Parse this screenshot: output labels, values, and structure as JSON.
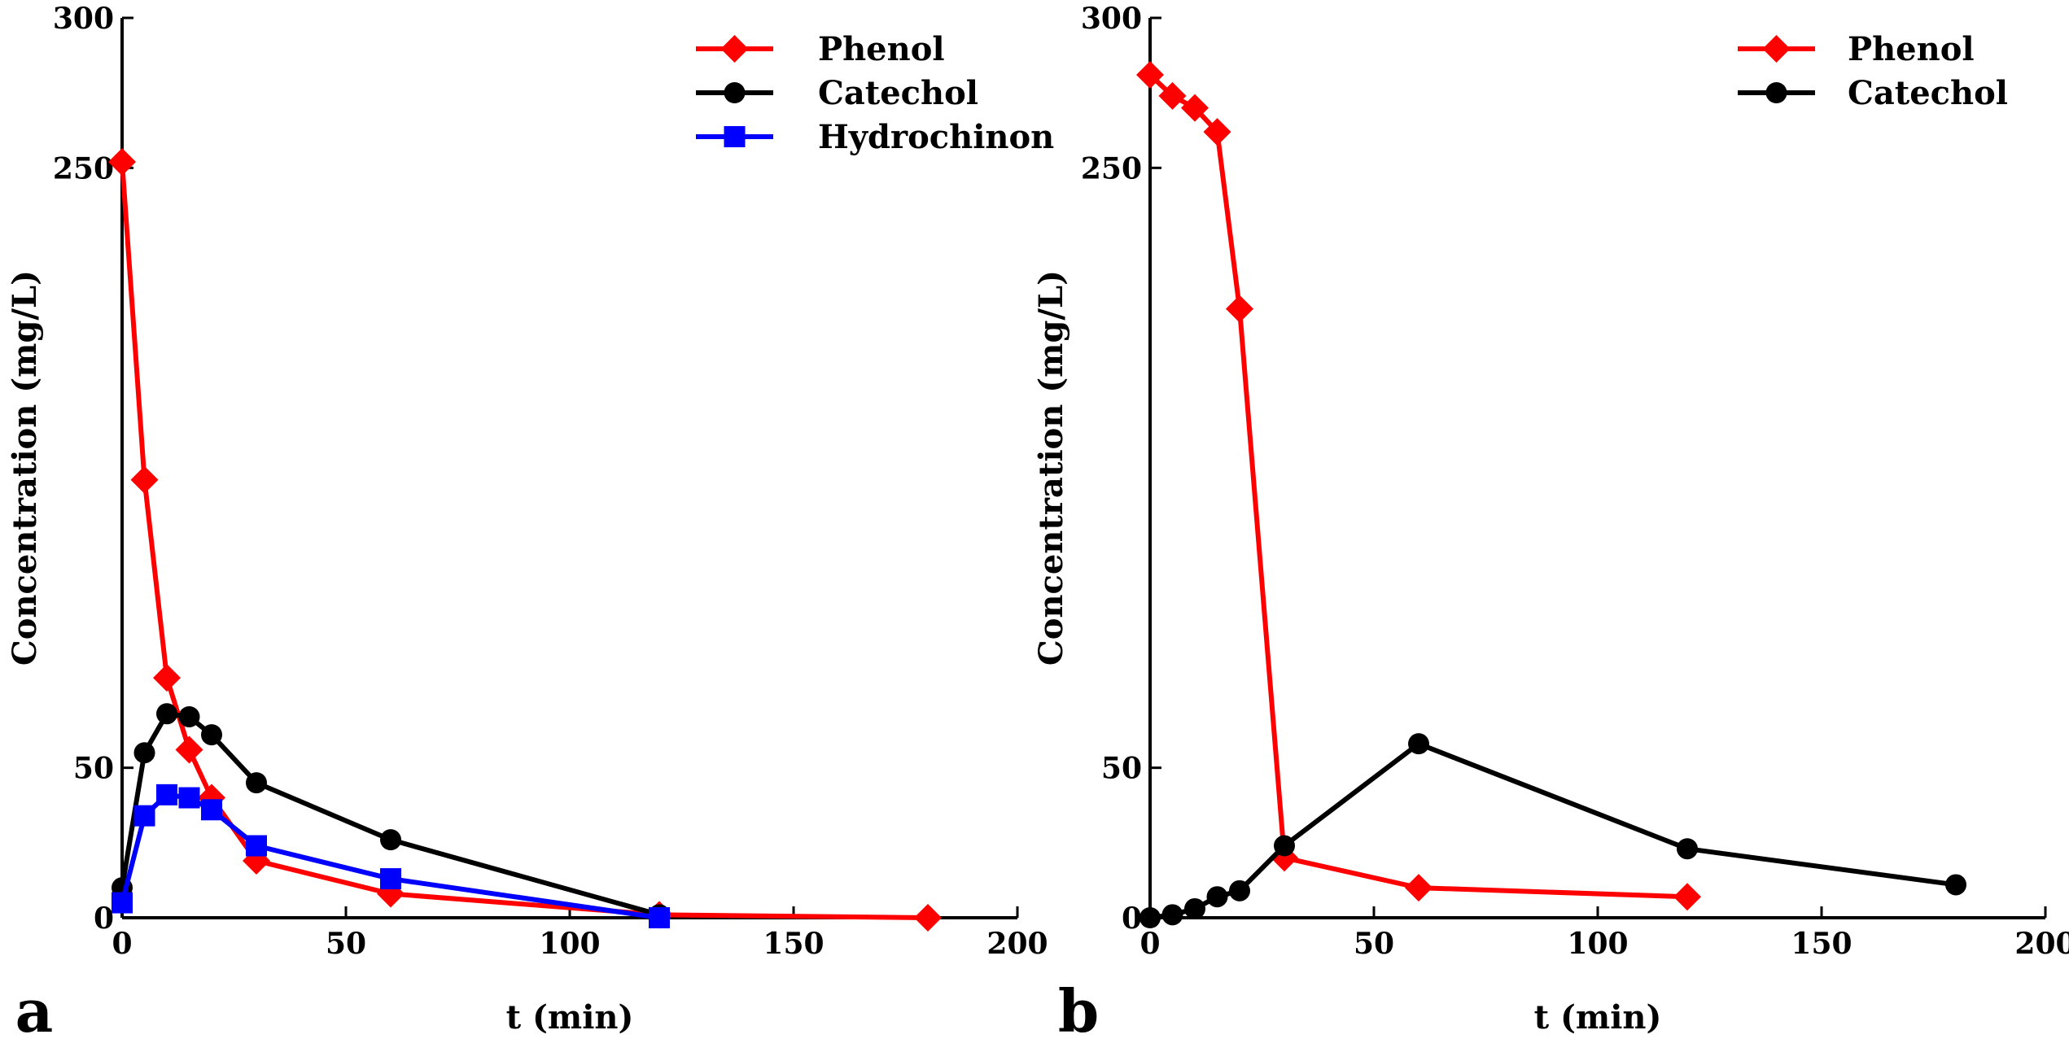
{
  "chart_data": [
    {
      "type": "line",
      "panel_label": "a",
      "xlabel": "t (min)",
      "ylabel": "Concentration (mg/L)",
      "xlim": [
        0,
        200
      ],
      "ylim": [
        0,
        300
      ],
      "xticks": [
        0,
        50,
        100,
        150,
        200
      ],
      "yticks": [
        0,
        50,
        250,
        300
      ],
      "legend_position": "top-right",
      "series": [
        {
          "name": "Phenol",
          "color": "#ff0000",
          "marker": "diamond",
          "x": [
            0,
            5,
            10,
            15,
            20,
            30,
            60,
            120,
            180
          ],
          "y": [
            252,
            146,
            80,
            56,
            40,
            19,
            8,
            1,
            0
          ]
        },
        {
          "name": "Catechol",
          "color": "#000000",
          "marker": "circle",
          "x": [
            0,
            5,
            10,
            15,
            20,
            30,
            60,
            120
          ],
          "y": [
            10,
            55,
            68,
            67,
            61,
            45,
            26,
            1
          ]
        },
        {
          "name": "Hydrochinon",
          "color": "#0000ff",
          "marker": "square",
          "x": [
            0,
            5,
            10,
            15,
            20,
            30,
            60,
            120
          ],
          "y": [
            5,
            34,
            41,
            40,
            36,
            24,
            13,
            0
          ]
        }
      ]
    },
    {
      "type": "line",
      "panel_label": "b",
      "xlabel": "t (min)",
      "ylabel": "Concentration (mg/L)",
      "xlim": [
        0,
        200
      ],
      "ylim": [
        0,
        300
      ],
      "xticks": [
        0,
        50,
        100,
        150,
        200
      ],
      "yticks": [
        0,
        50,
        250,
        300
      ],
      "legend_position": "top-right",
      "series": [
        {
          "name": "Phenol",
          "color": "#ff0000",
          "marker": "diamond",
          "x": [
            0,
            5,
            10,
            15,
            20,
            30,
            60,
            120
          ],
          "y": [
            281,
            274,
            270,
            262,
            203,
            20,
            10,
            7
          ]
        },
        {
          "name": "Catechol",
          "color": "#000000",
          "marker": "circle",
          "x": [
            0,
            5,
            10,
            15,
            20,
            30,
            60,
            120,
            180
          ],
          "y": [
            0,
            1,
            3,
            7,
            9,
            24,
            58,
            23,
            11
          ]
        }
      ]
    }
  ]
}
